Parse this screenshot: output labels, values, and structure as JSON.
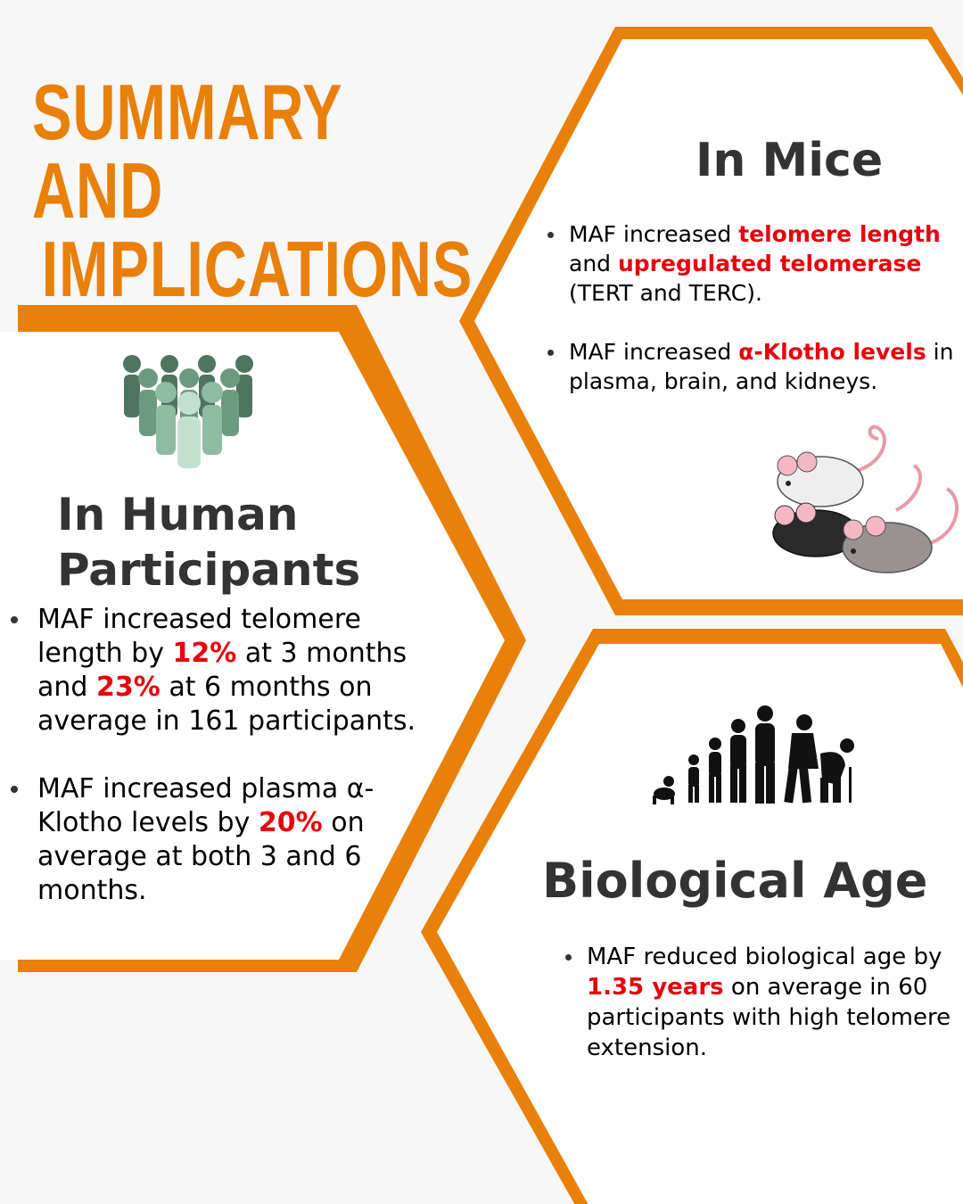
{
  "title": {
    "line1": "SUMMARY AND",
    "line2": "IMPLICATIONS"
  },
  "colors": {
    "accent": "#e8800a",
    "highlight": "#e8000b",
    "text": "#333333",
    "background": "#f7f7f7"
  },
  "mice": {
    "heading": "In Mice",
    "icon": "three-mice-illustration",
    "bullet1": {
      "pre": "MAF increased ",
      "hl1": "telomere length",
      "mid": " and ",
      "hl2": "upregulated telomerase",
      "post": " (TERT and TERC)."
    },
    "bullet2": {
      "pre": "MAF increased ",
      "hl1": "α-Klotho levels",
      "post": " in plasma, brain, and kidneys."
    }
  },
  "human": {
    "heading_line1": "In Human",
    "heading_line2": "Participants",
    "icon": "people-group-icon",
    "bullet1": {
      "pre": "MAF increased telomere length by ",
      "hl1": "12%",
      "mid": " at 3 months and ",
      "hl2": "23%",
      "post": " at 6 months on average in 161 participants."
    },
    "bullet2": {
      "pre": "MAF increased plasma α-Klotho levels by ",
      "hl1": "20%",
      "post": " on average at both 3 and 6 months."
    }
  },
  "bio": {
    "heading": "Biological Age",
    "icon": "human-evolution-silhouettes-icon",
    "bullet1": {
      "pre": "MAF reduced biological age by ",
      "hl1": "1.35 years",
      "post": " on average in 60 participants with high telomere extension."
    }
  }
}
